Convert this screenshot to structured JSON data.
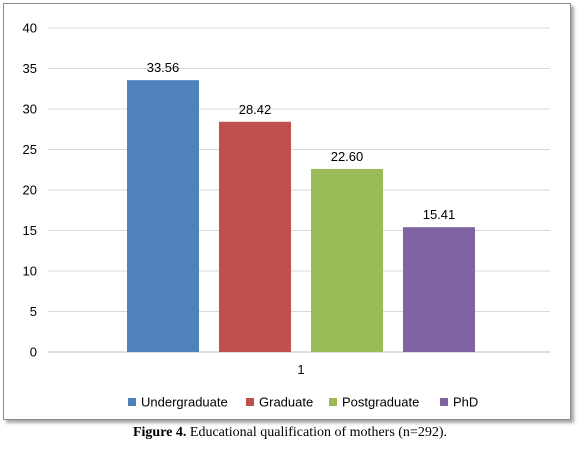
{
  "caption": {
    "label": "Figure 4.",
    "text": " Educational qualification of mothers (n=292)."
  },
  "chart_data": {
    "type": "bar",
    "categories": [
      "1"
    ],
    "series": [
      {
        "name": "Undergraduate",
        "values": [
          33.56
        ],
        "data_label": "33.56",
        "color": "#4f81bd"
      },
      {
        "name": "Graduate",
        "values": [
          28.42
        ],
        "data_label": "28.42",
        "color": "#c0504d"
      },
      {
        "name": "Postgraduate",
        "values": [
          22.6
        ],
        "data_label": "22.60",
        "color": "#9bbb59"
      },
      {
        "name": "PhD",
        "values": [
          15.41
        ],
        "data_label": "15.41",
        "color": "#8064a2"
      }
    ],
    "yticks": [
      "0",
      "5",
      "10",
      "15",
      "20",
      "25",
      "30",
      "35",
      "40"
    ],
    "ylim": [
      0,
      40
    ],
    "grid": true,
    "legend": "bottom",
    "title": "",
    "xlabel": "",
    "ylabel": ""
  }
}
